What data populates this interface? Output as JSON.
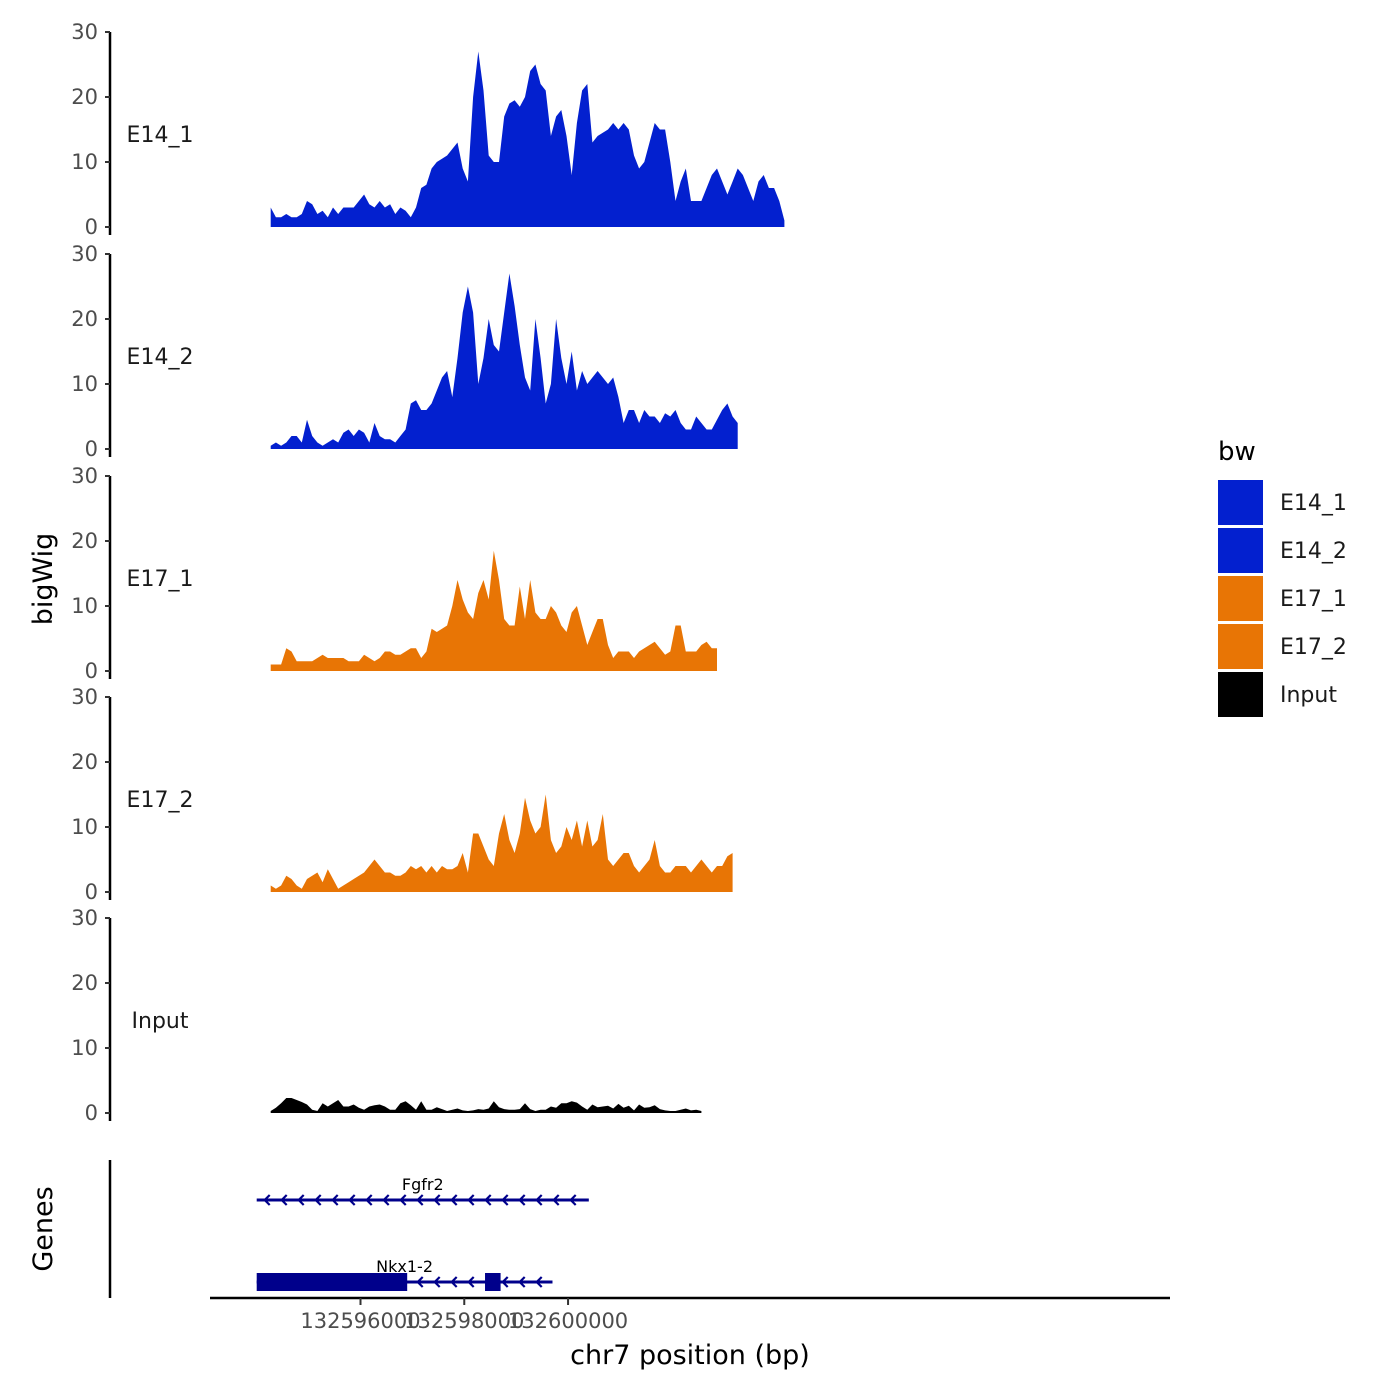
{
  "chart_data": {
    "type": "area",
    "chromosome": "chr7",
    "xlabel": "chr7 position (bp)",
    "ylabel": "bigWig",
    "genes_label": "Genes",
    "xlim": [
      132593100,
      132611600
    ],
    "x_ticks": [
      {
        "value": 132596000,
        "label": "132596000"
      },
      {
        "value": 132598000,
        "label": "132598000"
      },
      {
        "value": 132600000,
        "label": "132600000"
      }
    ],
    "ylim": [
      0,
      30
    ],
    "y_ticks": [
      {
        "value": 0,
        "label": "0"
      },
      {
        "value": 10,
        "label": "10"
      },
      {
        "value": 20,
        "label": "20"
      },
      {
        "value": 30,
        "label": "30"
      }
    ],
    "x_start": 132594270,
    "x_step": 100,
    "legend": {
      "title": "bw",
      "entries": [
        {
          "name": "E14_1",
          "color": "#0320CF"
        },
        {
          "name": "E14_2",
          "color": "#0320CF"
        },
        {
          "name": "E17_1",
          "color": "#E87505"
        },
        {
          "name": "E17_2",
          "color": "#E87505"
        },
        {
          "name": "Input",
          "color": "#000000"
        }
      ]
    },
    "series": [
      {
        "name": "E14_1",
        "color": "#0320CF",
        "values": [
          3,
          1.5,
          1.5,
          2,
          1.5,
          1.5,
          2,
          4,
          3.5,
          2,
          2.5,
          1.5,
          3,
          2,
          3,
          3,
          3,
          4,
          5,
          3.5,
          3,
          4,
          3,
          3.5,
          2,
          3,
          2.5,
          1.5,
          3,
          6,
          6.5,
          9,
          10,
          10.5,
          11,
          12,
          13,
          9,
          7,
          20,
          27,
          21,
          11,
          10,
          10,
          17,
          19,
          19.5,
          18.5,
          20,
          24,
          25,
          22,
          21,
          14,
          17,
          18,
          14,
          8,
          16,
          21,
          22,
          13,
          14,
          14.5,
          15,
          16,
          15,
          16,
          15,
          11,
          9,
          10,
          13,
          16,
          15,
          15,
          10,
          4,
          7,
          9,
          4,
          4,
          4,
          6,
          8,
          9,
          7,
          5,
          7,
          9,
          8,
          6,
          4,
          7,
          8,
          6,
          6,
          4,
          1
        ]
      },
      {
        "name": "E14_2",
        "color": "#0320CF",
        "values": [
          0.5,
          1,
          0.5,
          1,
          2,
          2,
          1,
          4.5,
          2,
          1,
          0.5,
          1,
          1.5,
          1,
          2.5,
          3,
          2,
          3,
          2.5,
          1,
          4,
          2,
          1.5,
          1.5,
          1,
          2,
          3,
          7,
          7.5,
          6,
          6,
          7,
          9,
          11,
          12,
          8,
          14,
          21,
          25,
          21,
          10,
          14,
          20,
          16,
          15,
          21,
          27,
          22,
          16,
          11,
          9,
          20,
          14,
          7,
          10,
          20,
          14,
          10,
          15,
          9,
          12,
          10,
          11,
          12,
          11,
          10,
          11,
          8,
          4,
          6,
          6,
          4,
          6,
          5,
          5,
          4,
          5.5,
          5,
          6,
          4,
          3,
          3,
          5,
          4,
          3,
          3,
          4.5,
          6,
          7,
          5,
          4
        ]
      },
      {
        "name": "E17_1",
        "color": "#E87505",
        "values": [
          1,
          1,
          1,
          3.5,
          3,
          1.5,
          1.5,
          1.5,
          1.5,
          2,
          2.5,
          2,
          2,
          2,
          2,
          1.5,
          1.5,
          1.5,
          2.5,
          2,
          1.5,
          2,
          3,
          3,
          2.5,
          2.5,
          3,
          3.5,
          3.5,
          2,
          3,
          6.5,
          6,
          6.5,
          7,
          10,
          14,
          11,
          9,
          8,
          12,
          14,
          11,
          18.5,
          14,
          8,
          7,
          7,
          13,
          8,
          14,
          9,
          8,
          8,
          10,
          9,
          7,
          6,
          9,
          10,
          7,
          4,
          6,
          8,
          8,
          4,
          2,
          3,
          3,
          3,
          2,
          3,
          3.5,
          4,
          4.5,
          3.5,
          2.5,
          3,
          7,
          7,
          3,
          3,
          3,
          4,
          4.5,
          3.5,
          3.5
        ]
      },
      {
        "name": "E17_2",
        "color": "#E87505",
        "values": [
          1,
          0.5,
          1,
          2.5,
          2,
          1,
          0.5,
          2,
          2.5,
          3,
          1.5,
          3.5,
          2,
          0.5,
          1,
          1.5,
          2,
          2.5,
          3,
          4,
          5,
          4,
          3,
          3,
          2.5,
          2.5,
          3,
          4,
          3.5,
          4,
          3,
          4,
          3,
          4,
          3.5,
          3.5,
          4,
          6,
          3,
          9,
          9,
          7,
          5,
          4,
          9,
          12,
          8,
          6,
          9,
          14.5,
          11,
          9,
          10,
          15,
          8,
          6,
          7,
          10,
          8,
          11,
          7,
          11,
          7,
          8,
          12,
          5,
          4,
          5,
          6,
          6,
          4,
          3,
          4,
          5,
          8,
          4,
          3,
          3,
          4,
          4,
          4,
          3,
          4,
          5,
          4,
          3,
          4,
          4,
          5.5,
          6
        ]
      },
      {
        "name": "Input",
        "color": "#000000",
        "values": [
          0.3,
          0.8,
          1.5,
          2.3,
          2.3,
          2,
          1.7,
          1.3,
          0.5,
          0.3,
          1.5,
          1,
          1.5,
          2,
          1,
          1,
          1.3,
          0.8,
          0.5,
          1,
          1.2,
          1.3,
          1,
          0.5,
          0.5,
          1.5,
          1.8,
          1.2,
          0.5,
          1.8,
          0.5,
          0.5,
          0.9,
          0.6,
          0.3,
          0.5,
          0.7,
          0.4,
          0.3,
          0.4,
          0.6,
          0.5,
          0.7,
          1.8,
          0.9,
          0.6,
          0.5,
          0.5,
          0.6,
          1.5,
          0.6,
          0.3,
          0.5,
          0.5,
          1,
          0.8,
          1.5,
          1.5,
          1.8,
          1.6,
          1,
          0.5,
          1.3,
          0.9,
          1,
          1.1,
          0.7,
          1.4,
          0.8,
          1.1,
          0.4,
          1.3,
          0.8,
          0.9,
          1.2,
          0.6,
          0.4,
          0.3,
          0.3,
          0.5,
          0.7,
          0.4,
          0.5,
          0.3
        ]
      }
    ],
    "genes": [
      {
        "name": "Fgfr2",
        "start": 132594000,
        "end": 132600400,
        "strand": "-",
        "exons": []
      },
      {
        "name": "Nkx1-2",
        "start": 132594000,
        "end": 132599700,
        "strand": "-",
        "exons": [
          [
            132594000,
            132596900
          ],
          [
            132598400,
            132598700
          ]
        ]
      }
    ]
  }
}
